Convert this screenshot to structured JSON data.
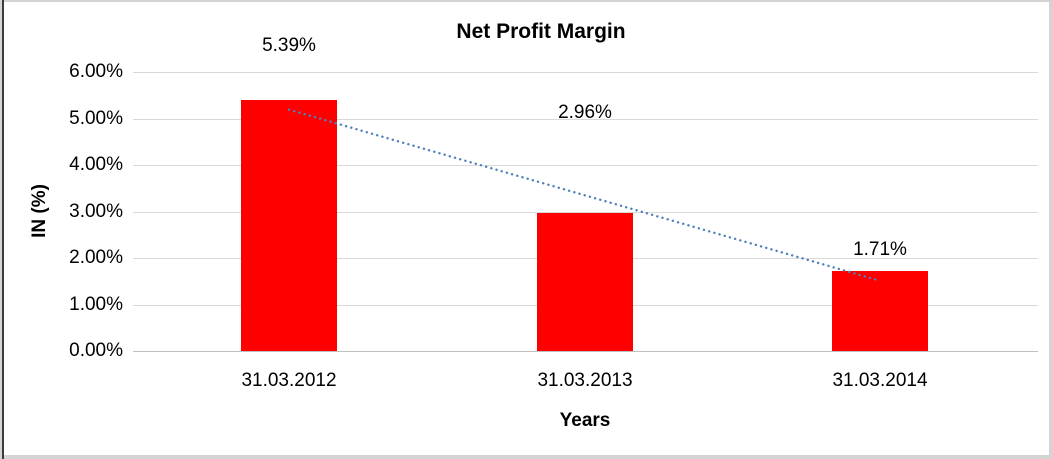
{
  "chart_data": {
    "type": "bar",
    "title": "Net Profit Margin",
    "xlabel": "Years",
    "ylabel": "IN (%)",
    "categories": [
      "31.03.2012",
      "31.03.2013",
      "31.03.2014"
    ],
    "values": [
      5.39,
      2.96,
      1.71
    ],
    "value_labels": [
      "5.39%",
      "2.96%",
      "1.71%"
    ],
    "value_label_positions_pct": [
      6.56,
      5.12,
      2.17
    ],
    "y_ticks": [
      "0.00%",
      "1.00%",
      "2.00%",
      "3.00%",
      "4.00%",
      "5.00%",
      "6.00%"
    ],
    "y_tick_values": [
      0,
      1,
      2,
      3,
      4,
      5,
      6
    ],
    "ylim": [
      0,
      6.5
    ],
    "grid": true,
    "legend_position": "none",
    "bar_color": "#ff0000",
    "gridline_color": "#d9d9d9",
    "axis_line_color": "#bfbfbf",
    "text_color": "#000000",
    "trendline": {
      "style": "dotted",
      "color": "#4f81bd",
      "start_pct": 5.19,
      "end_pct": 1.51
    }
  },
  "frame": {
    "border_color": "#d4d4d4",
    "left_line_color": "#3c3c3c",
    "background": "#ffffff"
  }
}
